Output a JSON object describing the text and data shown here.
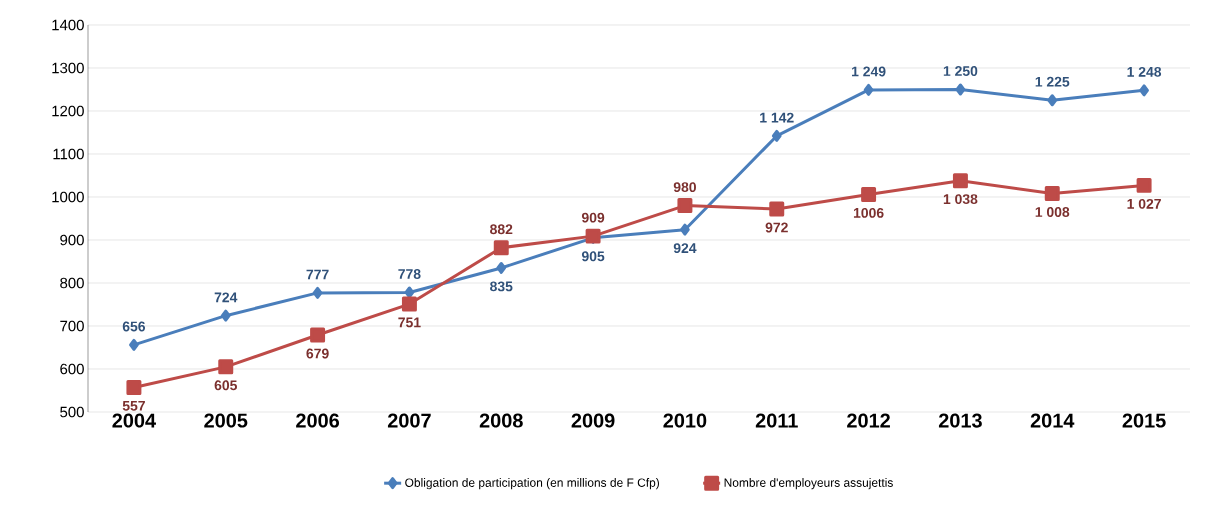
{
  "chart_data": {
    "type": "line",
    "categories": [
      "2004",
      "2005",
      "2006",
      "2007",
      "2008",
      "2009",
      "2010",
      "2011",
      "2012",
      "2013",
      "2014",
      "2015"
    ],
    "series": [
      {
        "name": "Obligation de participation (en millions de F Cfp)",
        "color": "#4a7ebb",
        "marker": "diamond",
        "values": [
          656,
          724,
          777,
          778,
          835,
          905,
          924,
          1142,
          1249,
          1250,
          1225,
          1248
        ],
        "value_labels": [
          "656",
          "724",
          "777",
          "778",
          "835",
          "905",
          "924",
          "1 142",
          "1 249",
          "1 250",
          "1 225",
          "1 248"
        ]
      },
      {
        "name": "Nombre d'employeurs assujettis",
        "color": "#be4b48",
        "marker": "square",
        "values": [
          557,
          605,
          679,
          751,
          882,
          909,
          980,
          972,
          1006,
          1038,
          1008,
          1027
        ],
        "value_labels": [
          "557",
          "605",
          "679",
          "751",
          "882",
          "909",
          "980",
          "972",
          "1006",
          "1 038",
          "1 008",
          "1 027"
        ]
      }
    ],
    "ylim": [
      500,
      1400
    ],
    "yticks": [
      500,
      600,
      700,
      800,
      900,
      1000,
      1100,
      1200,
      1300,
      1400
    ],
    "grid": "y",
    "legend": "bottom",
    "line_style": "solid"
  }
}
